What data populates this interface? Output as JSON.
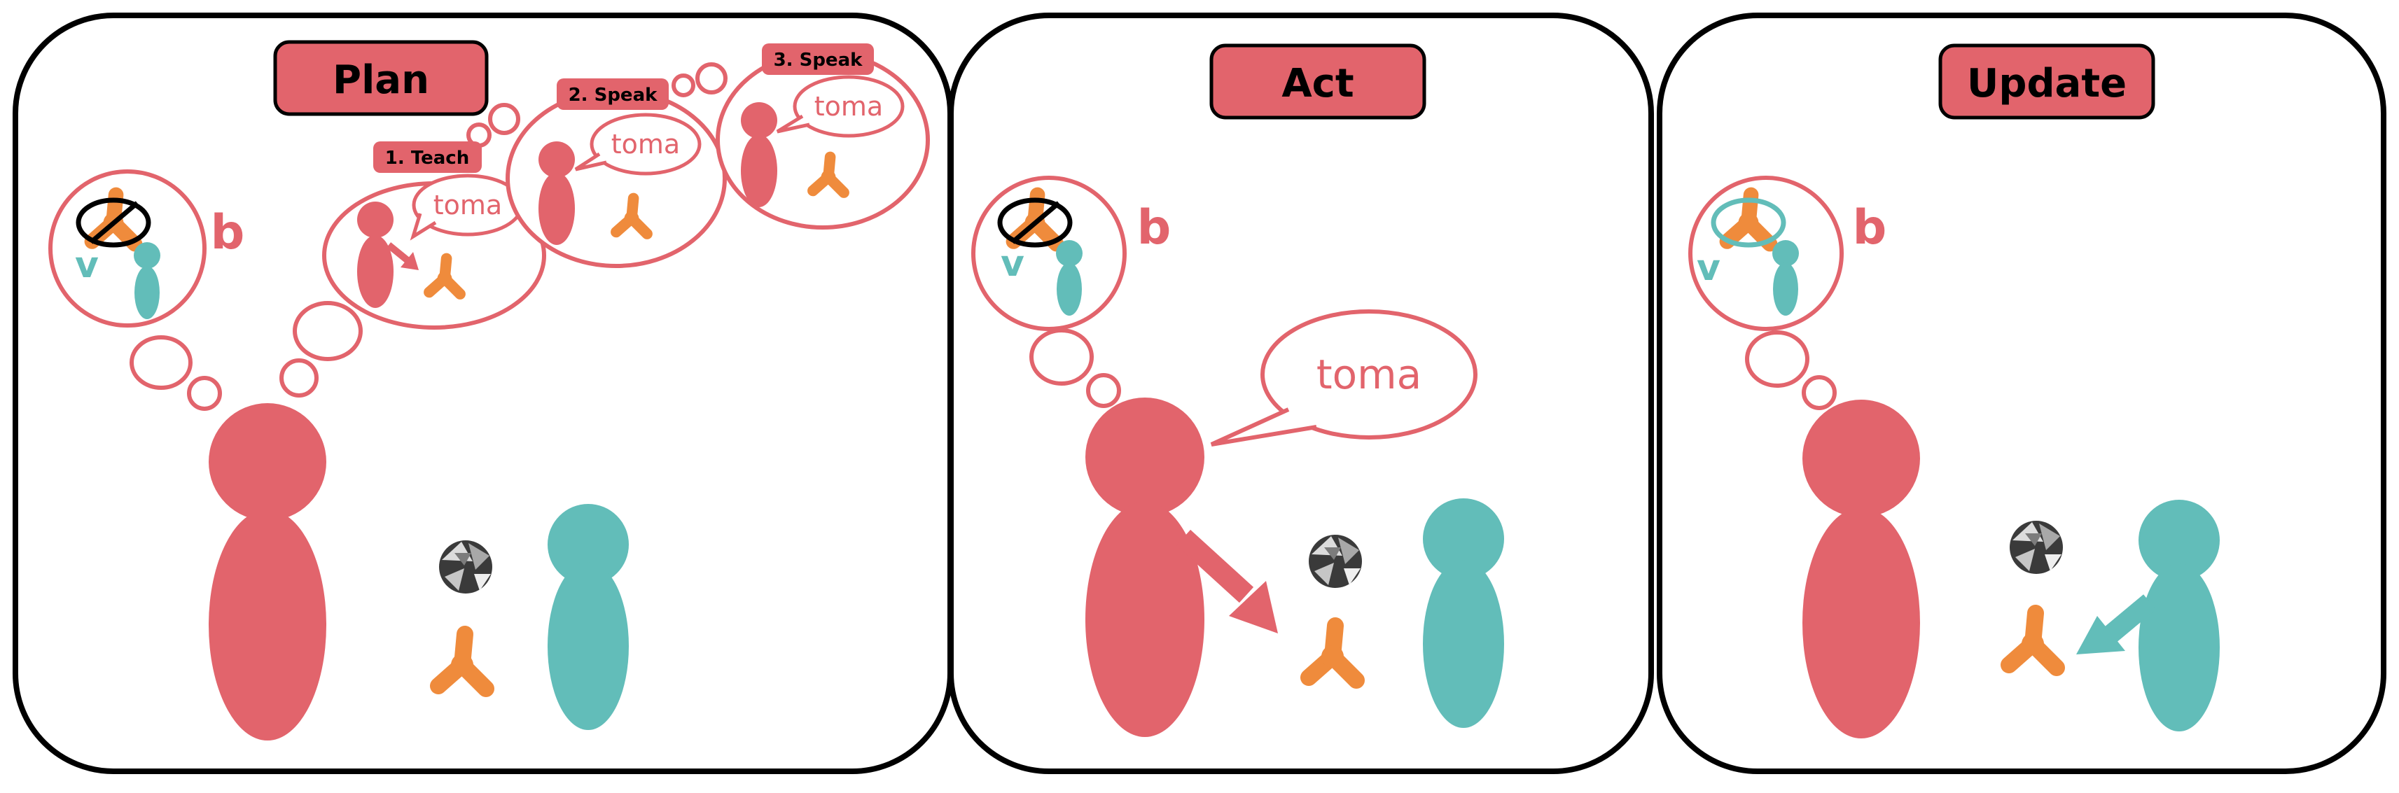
{
  "colors": {
    "red": "#e2646c",
    "teal": "#62bdb9",
    "orange": "#ef8b3c",
    "outline": "#000000"
  },
  "panels": [
    {
      "title": "Plan",
      "belief_label": "b",
      "agent_label": "v",
      "steps": [
        {
          "label": "1. Teach",
          "word": "toma"
        },
        {
          "label": "2. Speak",
          "word": "toma"
        },
        {
          "label": "3. Speak",
          "word": "toma"
        }
      ]
    },
    {
      "title": "Act",
      "belief_label": "b",
      "agent_label": "v",
      "speech": "toma"
    },
    {
      "title": "Update",
      "belief_label": "b",
      "agent_label": "v"
    }
  ],
  "icons": [
    "crossed-out-toy-icon",
    "orange-toy-icon",
    "gray-toy-icon",
    "pointing-arrow-icon"
  ]
}
